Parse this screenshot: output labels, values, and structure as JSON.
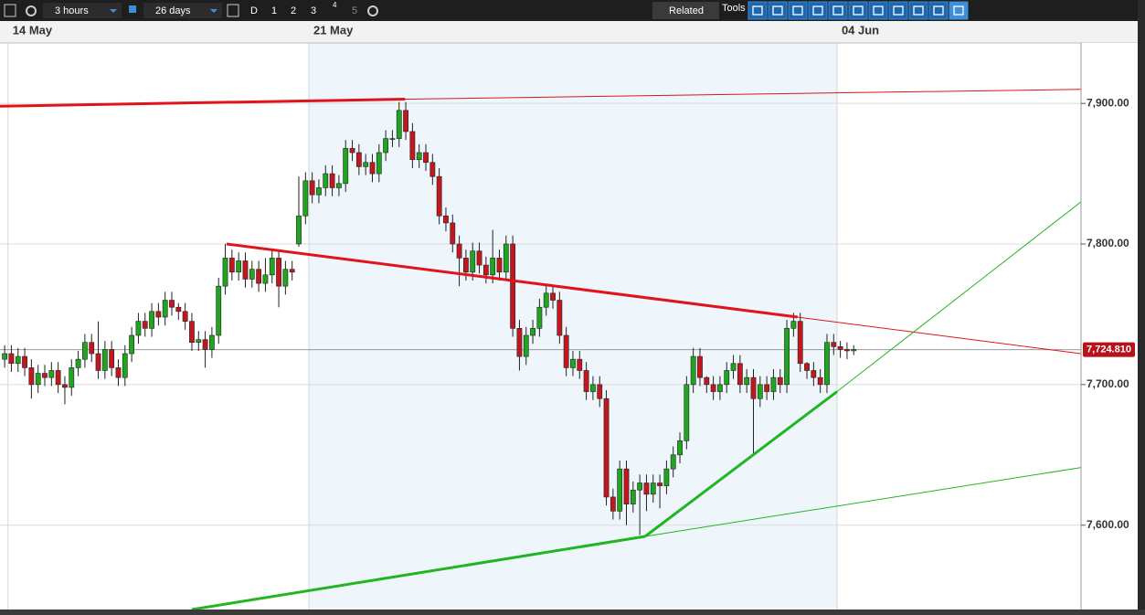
{
  "toolbar": {
    "interval": "3 hours",
    "range": "26 days",
    "periods": [
      "D",
      "1",
      "2",
      "3",
      "4",
      "5"
    ],
    "related": "Related",
    "tools": "Tools"
  },
  "chart_data": {
    "type": "candlestick",
    "grid": true,
    "up_color": "#1fa51f",
    "down_color": "#c2171f",
    "categories": [
      null,
      "14 May",
      null,
      null,
      null,
      null,
      null,
      null,
      null,
      null,
      null,
      null,
      null,
      null,
      null,
      null,
      null,
      null,
      null,
      null,
      null,
      null,
      null,
      null,
      null,
      null,
      null,
      null,
      null,
      null,
      null,
      null,
      null,
      null,
      null,
      null,
      null,
      null,
      null,
      null,
      null,
      null,
      null,
      null,
      null,
      null,
      "21 May",
      null,
      null,
      null,
      null,
      null,
      null,
      null,
      null,
      null,
      null,
      null,
      null,
      null,
      null,
      null,
      null,
      null,
      null,
      null,
      null,
      null,
      null,
      null,
      null,
      null,
      null,
      null,
      null,
      null,
      null,
      null,
      null,
      null,
      null,
      null,
      null,
      null,
      null,
      null,
      null,
      null,
      null,
      null,
      null,
      null,
      null,
      null,
      null,
      null,
      null,
      null,
      null,
      null,
      null,
      null,
      null,
      null,
      null,
      null,
      null,
      null,
      null,
      null,
      null,
      null,
      null,
      null,
      null,
      null,
      null,
      null,
      null,
      null,
      null,
      null,
      null,
      null,
      null,
      "04 Jun",
      null,
      null
    ],
    "open": [
      7718,
      7722,
      7715,
      7720,
      7712,
      7700,
      7708,
      7705,
      7710,
      7700,
      7698,
      7712,
      7718,
      7730,
      7722,
      7710,
      7725,
      7712,
      7705,
      7722,
      7735,
      7745,
      7740,
      7752,
      7748,
      7760,
      7755,
      7752,
      7745,
      7730,
      7732,
      7725,
      7735,
      7770,
      7790,
      7780,
      7788,
      7775,
      7782,
      7772,
      7778,
      7790,
      7770,
      7782,
      7800,
      7820,
      7845,
      7835,
      7840,
      7850,
      7840,
      7843,
      7868,
      7865,
      7855,
      7858,
      7850,
      7865,
      7875,
      7875,
      7895,
      7880,
      7860,
      7865,
      7858,
      7848,
      7820,
      7815,
      7800,
      7790,
      7780,
      7795,
      7785,
      7778,
      7790,
      7780,
      7800,
      7740,
      7720,
      7735,
      7740,
      7755,
      7765,
      7760,
      7735,
      7712,
      7718,
      7710,
      7695,
      7700,
      7690,
      7620,
      7610,
      7640,
      7615,
      7625,
      7630,
      7622,
      7630,
      7628,
      7640,
      7650,
      7660,
      7700,
      7720,
      7705,
      7700,
      7695,
      7700,
      7710,
      7715,
      7700,
      7705,
      7690,
      7700,
      7695,
      7705,
      7700,
      7740,
      7745,
      7715,
      7710,
      7705,
      7700,
      7730,
      7727,
      7725,
      7724
    ],
    "high": [
      7728,
      7728,
      7726,
      7726,
      7718,
      7714,
      7714,
      7716,
      7716,
      7706,
      7718,
      7724,
      7736,
      7736,
      7745,
      7731,
      7731,
      7718,
      7728,
      7741,
      7751,
      7751,
      7758,
      7758,
      7766,
      7766,
      7758,
      7758,
      7751,
      7738,
      7738,
      7741,
      7776,
      7800,
      7796,
      7794,
      7794,
      7788,
      7788,
      7790,
      7796,
      7796,
      7788,
      7788,
      7848,
      7851,
      7851,
      7846,
      7856,
      7856,
      7849,
      7874,
      7874,
      7871,
      7864,
      7864,
      7871,
      7881,
      7881,
      7901,
      7901,
      7886,
      7871,
      7871,
      7864,
      7854,
      7826,
      7821,
      7806,
      7796,
      7801,
      7801,
      7791,
      7810,
      7796,
      7806,
      7806,
      7746,
      7741,
      7746,
      7761,
      7771,
      7771,
      7766,
      7741,
      7724,
      7724,
      7716,
      7706,
      7706,
      7696,
      7626,
      7646,
      7646,
      7631,
      7636,
      7636,
      7636,
      7636,
      7646,
      7656,
      7666,
      7706,
      7726,
      7726,
      7706,
      7706,
      7706,
      7716,
      7721,
      7721,
      7711,
      7711,
      7706,
      7706,
      7711,
      7711,
      7746,
      7751,
      7751,
      7716,
      7716,
      7711,
      7736,
      7736,
      7731,
      7730,
      7728
    ],
    "low": [
      7712,
      7709,
      7709,
      7706,
      7690,
      7694,
      7699,
      7699,
      7694,
      7686,
      7692,
      7706,
      7712,
      7716,
      7704,
      7704,
      7706,
      7699,
      7699,
      7716,
      7729,
      7734,
      7734,
      7742,
      7742,
      7749,
      7746,
      7739,
      7724,
      7724,
      7712,
      7719,
      7729,
      7764,
      7774,
      7774,
      7769,
      7769,
      7766,
      7766,
      7772,
      7755,
      7764,
      7774,
      7798,
      7814,
      7829,
      7829,
      7834,
      7834,
      7834,
      7837,
      7859,
      7849,
      7849,
      7844,
      7844,
      7859,
      7869,
      7869,
      7874,
      7854,
      7854,
      7852,
      7842,
      7814,
      7809,
      7794,
      7770,
      7774,
      7774,
      7779,
      7772,
      7772,
      7774,
      7774,
      7734,
      7710,
      7714,
      7729,
      7734,
      7749,
      7754,
      7729,
      7706,
      7706,
      7704,
      7689,
      7689,
      7684,
      7614,
      7604,
      7604,
      7600,
      7609,
      7593,
      7610,
      7616,
      7612,
      7622,
      7634,
      7644,
      7654,
      7694,
      7699,
      7694,
      7689,
      7689,
      7694,
      7704,
      7694,
      7694,
      7650,
      7684,
      7689,
      7689,
      7694,
      7694,
      7734,
      7709,
      7704,
      7699,
      7694,
      7694,
      7721,
      7719,
      7718,
      7721
    ],
    "close": [
      7722,
      7715,
      7720,
      7712,
      7700,
      7708,
      7705,
      7710,
      7700,
      7698,
      7712,
      7718,
      7730,
      7722,
      7710,
      7725,
      7712,
      7705,
      7722,
      7735,
      7745,
      7740,
      7752,
      7748,
      7760,
      7755,
      7752,
      7745,
      7730,
      7732,
      7725,
      7735,
      7770,
      7790,
      7780,
      7788,
      7775,
      7782,
      7772,
      7778,
      7790,
      7770,
      7782,
      7780,
      7820,
      7845,
      7835,
      7840,
      7850,
      7840,
      7843,
      7868,
      7865,
      7855,
      7858,
      7850,
      7865,
      7875,
      7875,
      7895,
      7880,
      7860,
      7865,
      7858,
      7848,
      7820,
      7815,
      7800,
      7790,
      7780,
      7795,
      7785,
      7778,
      7790,
      7780,
      7800,
      7740,
      7720,
      7735,
      7740,
      7755,
      7765,
      7760,
      7735,
      7712,
      7718,
      7710,
      7695,
      7700,
      7690,
      7620,
      7610,
      7640,
      7615,
      7625,
      7630,
      7622,
      7630,
      7628,
      7640,
      7650,
      7660,
      7700,
      7720,
      7705,
      7700,
      7695,
      7700,
      7710,
      7715,
      7700,
      7705,
      7690,
      7700,
      7695,
      7705,
      7700,
      7740,
      7745,
      7715,
      7710,
      7705,
      7700,
      7730,
      7727,
      7725,
      7724,
      7725
    ],
    "ylim": [
      7540,
      7943
    ],
    "yticks": [
      {
        "value": 7600,
        "label": "7,600.00"
      },
      {
        "value": 7700,
        "label": "7,700.00"
      },
      {
        "value": 7800,
        "label": "7,800.00"
      },
      {
        "value": 7900,
        "label": "7,900.00"
      }
    ],
    "last_price": {
      "value": 7724.81,
      "label": "7,724.810"
    },
    "trendlines": [
      {
        "color": "#e0141b",
        "x": [
          -0.7,
          59.9,
          161
        ],
        "y": [
          7898,
          7903,
          7910
        ]
      },
      {
        "color": "#e0141b",
        "x": [
          33.2,
          118.6,
          161
        ],
        "y": [
          7800,
          7748,
          7722
        ]
      },
      {
        "color": "#22b522",
        "x": [
          28,
          95.8,
          161
        ],
        "y": [
          7540,
          7592,
          7641
        ]
      },
      {
        "color": "#22b522",
        "x": [
          95.8,
          124.5,
          161
        ],
        "y": [
          7592,
          7695,
          7830
        ]
      }
    ]
  }
}
